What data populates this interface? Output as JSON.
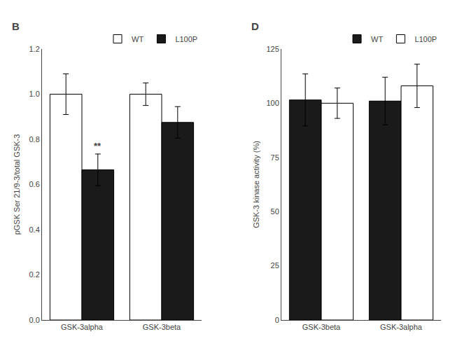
{
  "chart_data": [
    {
      "type": "bar",
      "title": "B",
      "categories": [
        "GSK-3alpha",
        "GSK-3beta"
      ],
      "series": [
        {
          "name": "WT",
          "color": "#ffffff",
          "values": [
            1.0,
            1.0
          ],
          "errors": [
            0.09,
            0.05
          ]
        },
        {
          "name": "L100P",
          "color": "#1a1a1a",
          "values": [
            0.665,
            0.875
          ],
          "errors": [
            0.07,
            0.07
          ]
        }
      ],
      "ylabel": "pGSK Ser 21/9-3/total GSK-3",
      "ylim": [
        0,
        1.2
      ],
      "yticks": [
        {
          "value": 0,
          "label": "0.0"
        },
        0.2,
        0.4,
        0.6,
        0.8,
        {
          "value": 1.0,
          "label": "1.0"
        },
        1.2
      ],
      "grid": false,
      "legend": "upper right",
      "annotations": [
        {
          "text": "**",
          "category": "GSK-3alpha",
          "series": "L100P"
        }
      ]
    },
    {
      "type": "bar",
      "title": "D",
      "categories": [
        "GSK-3beta",
        "GSK-3alpha"
      ],
      "series": [
        {
          "name": "WT",
          "color": "#1a1a1a",
          "values": [
            101.5,
            101.0
          ],
          "errors": [
            12.0,
            11.0
          ]
        },
        {
          "name": "L100P",
          "color": "#ffffff",
          "values": [
            100.0,
            108.0
          ],
          "errors": [
            7.0,
            10.0
          ]
        }
      ],
      "ylabel": "GSK-3 kinase activity (%)",
      "ylim": [
        0,
        125
      ],
      "yticks": [
        0,
        25,
        50,
        75,
        100,
        125
      ],
      "grid": false,
      "legend": "upper right"
    }
  ]
}
